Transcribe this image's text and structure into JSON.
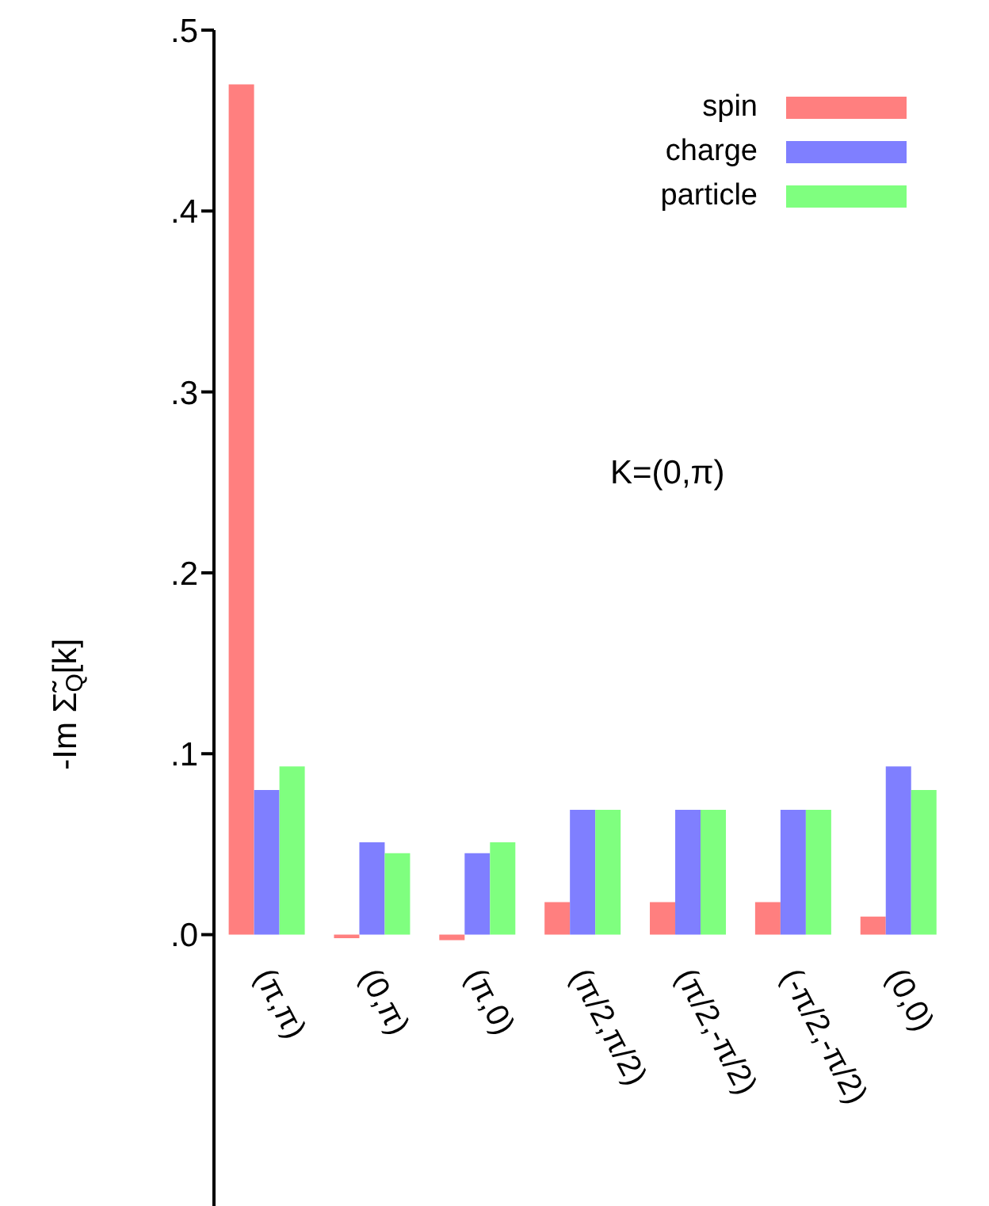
{
  "chart_data": {
    "type": "bar",
    "ylabel": "-Im Σ̃$_{Q}$[k]",
    "categories": [
      "(π,π)",
      "(0,π)",
      "(π,0)",
      "(π/2,π/2)",
      "(π/2,-π/2)",
      "(-π/2,-π/2)",
      "(0,0)"
    ],
    "series": [
      {
        "name": "spin",
        "color": "#ff7f7f",
        "values": [
          0.47,
          -0.002,
          -0.003,
          0.018,
          0.018,
          0.018,
          0.01
        ]
      },
      {
        "name": "charge",
        "color": "#7f7fff",
        "values": [
          0.08,
          0.051,
          0.045,
          0.069,
          0.069,
          0.069,
          0.093
        ]
      },
      {
        "name": "particle",
        "color": "#7fff7f",
        "values": [
          0.093,
          0.045,
          0.051,
          0.069,
          0.069,
          0.069,
          0.08
        ]
      }
    ],
    "ylim": [
      -0.15,
      0.5
    ],
    "yticks": [
      {
        "value": 0,
        "label": ".0"
      },
      {
        "value": 0.1,
        "label": ".1"
      },
      {
        "value": 0.2,
        "label": ".2"
      },
      {
        "value": 0.3,
        "label": ".3"
      },
      {
        "value": 0.4,
        "label": ".4"
      },
      {
        "value": 0.5,
        "label": ".5"
      }
    ],
    "annotations": [
      "K=(0,π)"
    ],
    "legend": "top right",
    "grid": false
  }
}
